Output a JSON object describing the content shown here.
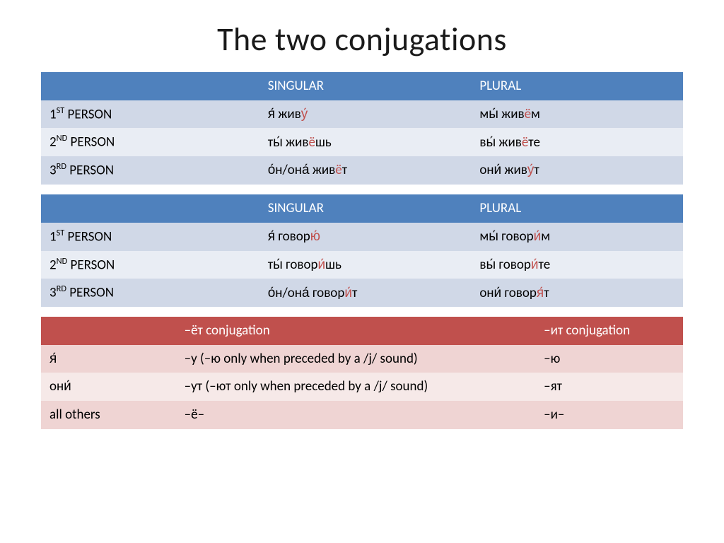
{
  "title": "The two conjugations",
  "table1": {
    "header_bg": "#4f81bd",
    "header_fg": "#ffffff",
    "row_light_bg": "#d0d8e7",
    "row_dark_bg": "#e9edf4",
    "highlight_color": "#c0504d",
    "columns": [
      "",
      "SINGULAR",
      "PLURAL"
    ],
    "rows": [
      {
        "label_ord": "1",
        "label_suffix": "ST",
        "label_rest": " PERSON",
        "singular": [
          [
            "я́ жив",
            ""
          ],
          [
            "у́",
            "hi"
          ]
        ],
        "plural": [
          [
            "мы́ жив",
            ""
          ],
          [
            "ё",
            "hi"
          ],
          [
            "м",
            ""
          ]
        ]
      },
      {
        "label_ord": "2",
        "label_suffix": "ND",
        "label_rest": " PERSON",
        "singular": [
          [
            "ты́ жив",
            ""
          ],
          [
            "ё",
            "hi"
          ],
          [
            "шь",
            ""
          ]
        ],
        "plural": [
          [
            "вы́ жив",
            ""
          ],
          [
            "ё",
            "hi"
          ],
          [
            "те",
            ""
          ]
        ]
      },
      {
        "label_ord": "3",
        "label_suffix": "RD",
        "label_rest": " PERSON",
        "singular": [
          [
            "о́н/она́ жив",
            ""
          ],
          [
            "ё",
            "hi"
          ],
          [
            "т",
            ""
          ]
        ],
        "plural": [
          [
            "они́ жив",
            ""
          ],
          [
            "у́",
            "hi"
          ],
          [
            "т",
            ""
          ]
        ]
      }
    ]
  },
  "table2": {
    "header_bg": "#4f81bd",
    "header_fg": "#ffffff",
    "row_light_bg": "#d0d8e7",
    "row_dark_bg": "#e9edf4",
    "highlight_color": "#c0504d",
    "columns": [
      "",
      "SINGULAR",
      "PLURAL"
    ],
    "rows": [
      {
        "label_ord": "1",
        "label_suffix": "ST",
        "label_rest": " PERSON",
        "singular": [
          [
            "я́ говор",
            ""
          ],
          [
            "ю́",
            "hi"
          ]
        ],
        "plural": [
          [
            "мы́ говор",
            ""
          ],
          [
            "и́",
            "hi"
          ],
          [
            "м",
            ""
          ]
        ]
      },
      {
        "label_ord": "2",
        "label_suffix": "ND",
        "label_rest": " PERSON",
        "singular": [
          [
            "ты́ говор",
            ""
          ],
          [
            "и́",
            "hi"
          ],
          [
            "шь",
            ""
          ]
        ],
        "plural": [
          [
            "вы́ говор",
            ""
          ],
          [
            "и́",
            "hi"
          ],
          [
            "те",
            ""
          ]
        ]
      },
      {
        "label_ord": "3",
        "label_suffix": "RD",
        "label_rest": " PERSON",
        "singular": [
          [
            "о́н/она́ говор",
            ""
          ],
          [
            "и́",
            "hi"
          ],
          [
            "т",
            ""
          ]
        ],
        "plural": [
          [
            "они́ говор",
            ""
          ],
          [
            "я́",
            "hi"
          ],
          [
            "т",
            ""
          ]
        ]
      }
    ]
  },
  "table3": {
    "header_bg": "#c0504d",
    "header_fg": "#ffffff",
    "row_light_bg": "#efd4d3",
    "row_dark_bg": "#f6e9e8",
    "columns": [
      "",
      "–ёт conjugation",
      "–ит conjugation"
    ],
    "rows": [
      {
        "c0": "я́",
        "c1": "–у (–ю only when preceded by a /j/ sound)",
        "c2": "–ю"
      },
      {
        "c0": "они́",
        "c1": "–ут (–ют only when preceded by a /j/ sound)",
        "c2": "–ят"
      },
      {
        "c0": "all others",
        "c1": "–ё–",
        "c2": "–и–"
      }
    ]
  }
}
